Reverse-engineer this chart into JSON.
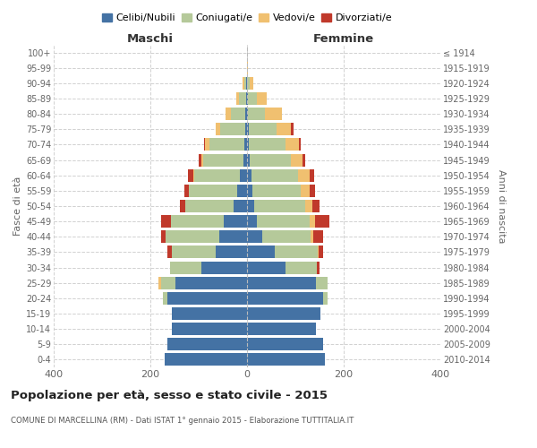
{
  "age_groups": [
    "0-4",
    "5-9",
    "10-14",
    "15-19",
    "20-24",
    "25-29",
    "30-34",
    "35-39",
    "40-44",
    "45-49",
    "50-54",
    "55-59",
    "60-64",
    "65-69",
    "70-74",
    "75-79",
    "80-84",
    "85-89",
    "90-94",
    "95-99",
    "100+"
  ],
  "birth_years": [
    "2010-2014",
    "2005-2009",
    "2000-2004",
    "1995-1999",
    "1990-1994",
    "1985-1989",
    "1980-1984",
    "1975-1979",
    "1970-1974",
    "1965-1969",
    "1960-1964",
    "1955-1959",
    "1950-1954",
    "1945-1949",
    "1940-1944",
    "1935-1939",
    "1930-1934",
    "1925-1929",
    "1920-1924",
    "1915-1919",
    "≤ 1914"
  ],
  "male_celibi": [
    170,
    165,
    155,
    155,
    165,
    148,
    95,
    65,
    58,
    48,
    28,
    20,
    15,
    8,
    5,
    4,
    3,
    2,
    1,
    0,
    0
  ],
  "male_coniugati": [
    0,
    0,
    0,
    0,
    10,
    30,
    65,
    90,
    110,
    110,
    100,
    100,
    95,
    82,
    72,
    52,
    30,
    15,
    5,
    0,
    0
  ],
  "male_vedovi": [
    0,
    0,
    0,
    0,
    0,
    5,
    0,
    0,
    0,
    0,
    0,
    0,
    2,
    5,
    10,
    8,
    12,
    6,
    3,
    0,
    0
  ],
  "male_divorziati": [
    0,
    0,
    0,
    0,
    0,
    0,
    0,
    10,
    10,
    20,
    10,
    10,
    10,
    5,
    2,
    0,
    0,
    0,
    0,
    0,
    0
  ],
  "female_nubili": [
    162,
    158,
    142,
    152,
    158,
    142,
    80,
    58,
    32,
    20,
    15,
    12,
    10,
    5,
    4,
    3,
    2,
    2,
    0,
    0,
    0
  ],
  "female_coniugate": [
    0,
    0,
    0,
    0,
    8,
    25,
    65,
    88,
    100,
    110,
    105,
    100,
    95,
    85,
    75,
    58,
    35,
    18,
    5,
    0,
    0
  ],
  "female_vedove": [
    0,
    0,
    0,
    0,
    0,
    0,
    0,
    2,
    5,
    10,
    15,
    18,
    25,
    25,
    28,
    30,
    35,
    20,
    8,
    2,
    0
  ],
  "female_divorziate": [
    0,
    0,
    0,
    0,
    0,
    0,
    5,
    10,
    20,
    30,
    15,
    10,
    8,
    5,
    5,
    5,
    0,
    0,
    0,
    0,
    0
  ],
  "color_celibi": "#4472a4",
  "color_coniugati": "#b5c99a",
  "color_vedovi": "#f0c070",
  "color_divorziati": "#c0392b",
  "xlim": 400,
  "title": "Popolazione per età, sesso e stato civile - 2015",
  "subtitle": "COMUNE DI MARCELLINA (RM) - Dati ISTAT 1° gennaio 2015 - Elaborazione TUTTITALIA.IT",
  "label_maschi": "Maschi",
  "label_femmine": "Femmine",
  "ylabel_left": "Fasce di età",
  "ylabel_right": "Anni di nascita",
  "legend_labels": [
    "Celibi/Nubili",
    "Coniugati/e",
    "Vedovi/e",
    "Divorziati/e"
  ],
  "bg_color": "#ffffff",
  "grid_color": "#cccccc"
}
